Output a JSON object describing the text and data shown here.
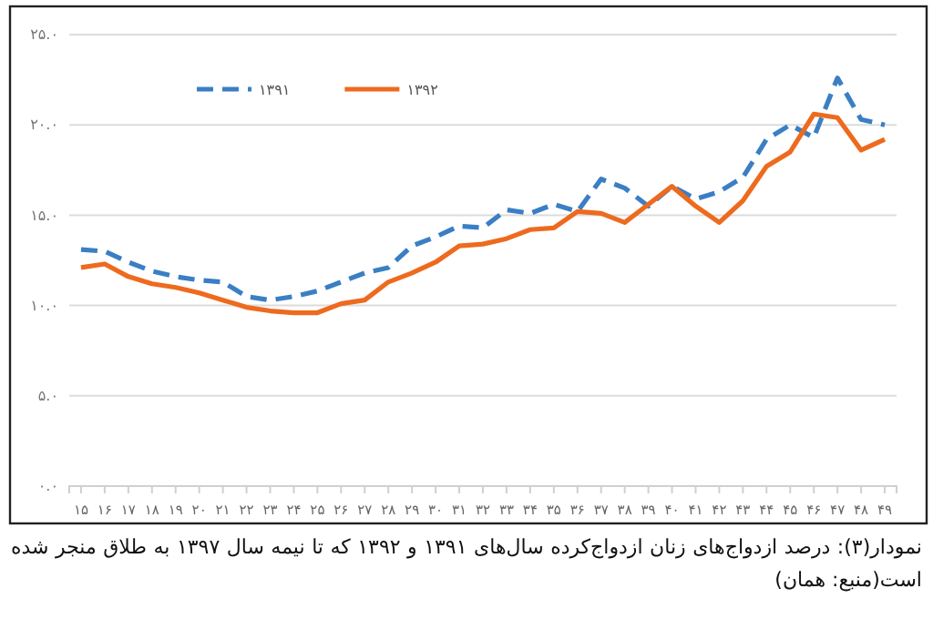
{
  "chart_data": {
    "type": "line",
    "categories": [
      "۱۵",
      "۱۶",
      "۱۷",
      "۱۸",
      "۱۹",
      "۲۰",
      "۲۱",
      "۲۲",
      "۲۳",
      "۲۴",
      "۲۵",
      "۲۶",
      "۲۷",
      "۲۸",
      "۲۹",
      "۳۰",
      "۳۱",
      "۳۲",
      "۳۳",
      "۳۴",
      "۳۵",
      "۳۶",
      "۳۷",
      "۳۸",
      "۳۹",
      "۴۰",
      "۴۱",
      "۴۲",
      "۴۳",
      "۴۴",
      "۴۵",
      "۴۶",
      "۴۷",
      "۴۸",
      "۴۹"
    ],
    "series": [
      {
        "name": "۱۳۹۱",
        "color": "#3a7fc4",
        "line_style": "dashed",
        "values": [
          13.1,
          13.0,
          12.4,
          11.9,
          11.6,
          11.4,
          11.3,
          10.5,
          10.3,
          10.5,
          10.8,
          11.3,
          11.8,
          12.1,
          13.3,
          13.8,
          14.4,
          14.3,
          15.3,
          15.1,
          15.6,
          15.2,
          17.0,
          16.5,
          15.5,
          16.6,
          15.9,
          16.3,
          17.1,
          19.2,
          20.0,
          19.3,
          22.6,
          20.3,
          20.0
        ]
      },
      {
        "name": "۱۳۹۲",
        "color": "#ee6a1e",
        "line_style": "solid",
        "values": [
          12.1,
          12.3,
          11.6,
          11.2,
          11.0,
          10.7,
          10.3,
          9.9,
          9.7,
          9.6,
          9.6,
          10.1,
          10.3,
          11.3,
          11.8,
          12.4,
          13.3,
          13.4,
          13.7,
          14.2,
          14.3,
          15.2,
          15.1,
          14.6,
          15.6,
          16.6,
          15.5,
          14.6,
          15.8,
          17.7,
          18.5,
          20.6,
          20.4,
          18.6,
          19.2
        ]
      }
    ],
    "ylim": [
      0,
      25
    ],
    "yticks": [
      {
        "value": 0,
        "label": "۰.۰"
      },
      {
        "value": 5,
        "label": "۵.۰"
      },
      {
        "value": 10,
        "label": "۱۰.۰"
      },
      {
        "value": 15,
        "label": "۱۵.۰"
      },
      {
        "value": 20,
        "label": "۲۰.۰"
      },
      {
        "value": 25,
        "label": "۲۵.۰"
      }
    ],
    "grid": "y",
    "legend": "top left",
    "annotations": [
      "نمودار(۳): درصد ازدواج‌های زنان ازدواج‌کرده سال‌های ۱۳۹۱ و ۱۳۹۲ که تا نیمه سال ۱۳۹۷ به طلاق منجر شده است(منبع: همان)"
    ]
  }
}
